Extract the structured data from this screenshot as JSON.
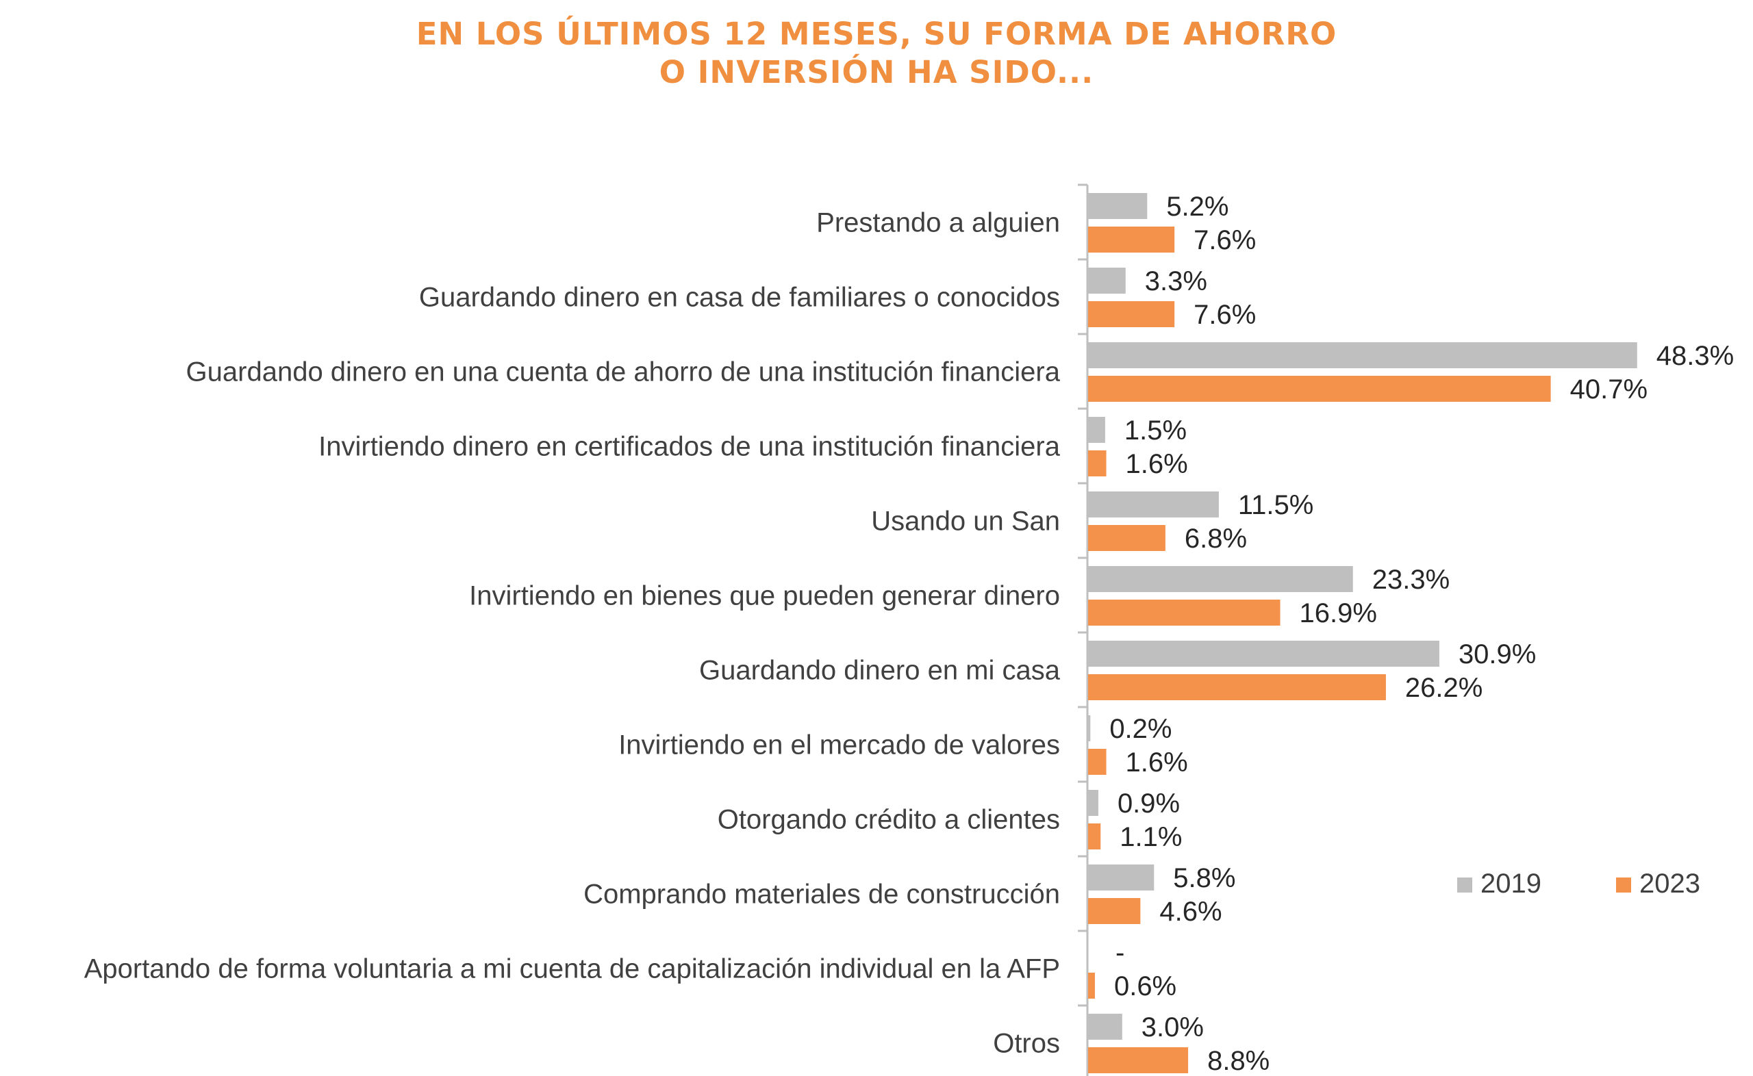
{
  "title_lines": [
    "EN LOS ÚLTIMOS 12 MESES, SU FORMA DE AHORRO",
    "O INVERSIÓN HA SIDO..."
  ],
  "colors": {
    "title": "#ef8f3f",
    "series_2019": "#bfbfbf",
    "series_2023": "#f4914b",
    "axis": "#bfbfbf",
    "text": "#404040"
  },
  "chart_data": {
    "type": "bar",
    "orientation": "horizontal",
    "title": "EN LOS ÚLTIMOS 12 MESES, SU FORMA DE AHORRO O INVERSIÓN HA SIDO...",
    "categories": [
      "Prestando a alguien",
      "Guardando dinero en casa de familiares o conocidos",
      "Guardando dinero en una cuenta de ahorro de una institución financiera",
      "Invirtiendo dinero en certificados de una institución financiera",
      "Usando un San",
      "Invirtiendo en bienes que pueden generar dinero",
      "Guardando dinero en mi casa",
      "Invirtiendo en el mercado de valores",
      "Otorgando crédito a clientes",
      "Comprando materiales de construcción",
      "Aportando de forma voluntaria a mi cuenta de capitalización individual en la AFP",
      "Otros"
    ],
    "series": [
      {
        "name": "2019",
        "color": "#bfbfbf",
        "values": [
          5.2,
          3.3,
          48.3,
          1.5,
          11.5,
          23.3,
          30.9,
          0.2,
          0.9,
          5.8,
          null,
          3.0
        ],
        "labels": [
          "5.2%",
          "3.3%",
          "48.3%",
          "1.5%",
          "11.5%",
          "23.3%",
          "30.9%",
          "0.2%",
          "0.9%",
          "5.8%",
          "-",
          "3.0%"
        ]
      },
      {
        "name": "2023",
        "color": "#f4914b",
        "values": [
          7.6,
          7.6,
          40.7,
          1.6,
          6.8,
          16.9,
          26.2,
          1.6,
          1.1,
          4.6,
          0.6,
          8.8
        ],
        "labels": [
          "7.6%",
          "7.6%",
          "40.7%",
          "1.6%",
          "6.8%",
          "16.9%",
          "26.2%",
          "1.6%",
          "1.1%",
          "4.6%",
          "0.6%",
          "8.8%"
        ]
      }
    ],
    "xlabel": "",
    "ylabel": "",
    "xlim": [
      0,
      50
    ],
    "grid": false,
    "legend": "bottom-right"
  }
}
